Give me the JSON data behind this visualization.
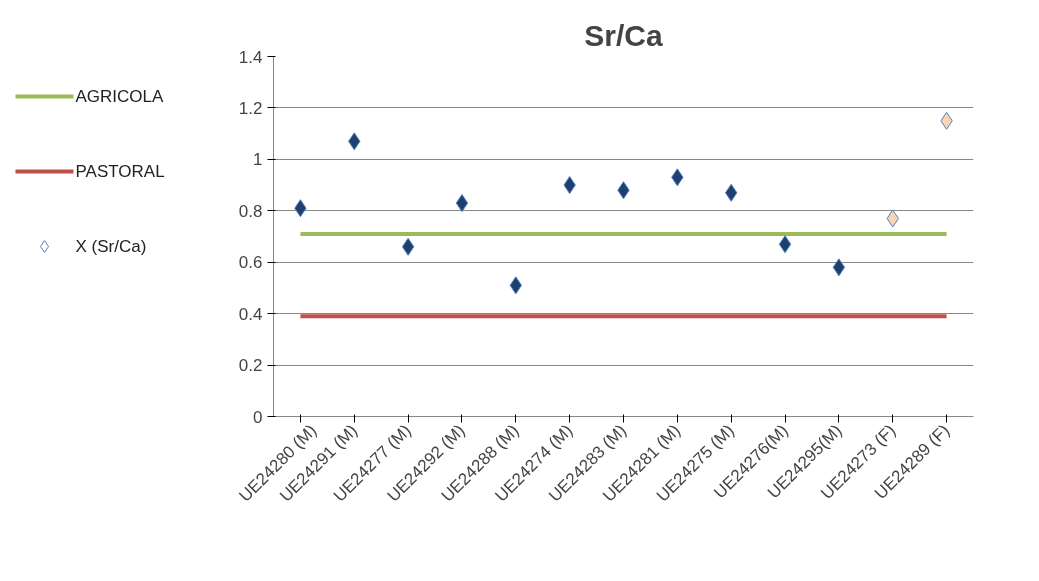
{
  "chart_data": {
    "type": "scatter",
    "title": "Sr/Ca",
    "categories": [
      "UE24280 (M)",
      "UE24291 (M)",
      "UE24277 (M)",
      "UE24292 (M)",
      "UE24288 (M)",
      "UE24274 (M)",
      "UE24283 (M)",
      "UE24281 (M)",
      "UE24275 (M)",
      "UE24276(M)",
      "UE24295(M)",
      "UE24273 (F)",
      "UE24289 (F)"
    ],
    "series": [
      {
        "name": "AGRICOLA",
        "type": "line",
        "color": "#9bbb59",
        "values": [
          0.71,
          0.71,
          0.71,
          0.71,
          0.71,
          0.71,
          0.71,
          0.71,
          0.71,
          0.71,
          0.71,
          0.71,
          0.71
        ]
      },
      {
        "name": "PASTORAL",
        "type": "line",
        "color": "#c0504d",
        "values": [
          0.39,
          0.39,
          0.39,
          0.39,
          0.39,
          0.39,
          0.39,
          0.39,
          0.39,
          0.39,
          0.39,
          0.39,
          0.39
        ]
      },
      {
        "name": "X (Sr/Ca)",
        "marker": "diamond",
        "color": "#4f81bd",
        "colors": [
          "#1f3f6e",
          "#1f3f6e",
          "#1f3f6e",
          "#1f3f6e",
          "#1f3f6e",
          "#1f3f6e",
          "#1f3f6e",
          "#1f3f6e",
          "#1f3f6e",
          "#1f3f6e",
          "#1f3f6e",
          "#fbd4b4",
          "#fbd4b4"
        ],
        "values": [
          0.81,
          1.07,
          0.66,
          0.83,
          0.51,
          0.9,
          0.88,
          0.93,
          0.87,
          0.67,
          0.58,
          0.77,
          1.15
        ]
      }
    ],
    "ylim": [
      0,
      1.4
    ],
    "yticks": [
      0,
      {
        "value": 0.2,
        "label": "0.2"
      },
      {
        "value": 0.4,
        "label": "0.4"
      },
      {
        "value": 0.6,
        "label": "0.6"
      },
      {
        "value": 0.8,
        "label": "0.8"
      },
      1,
      {
        "value": 1.2,
        "label": "1.2"
      },
      {
        "value": 1.4,
        "label": "1.4"
      }
    ],
    "grid": "y",
    "legend": "left"
  }
}
